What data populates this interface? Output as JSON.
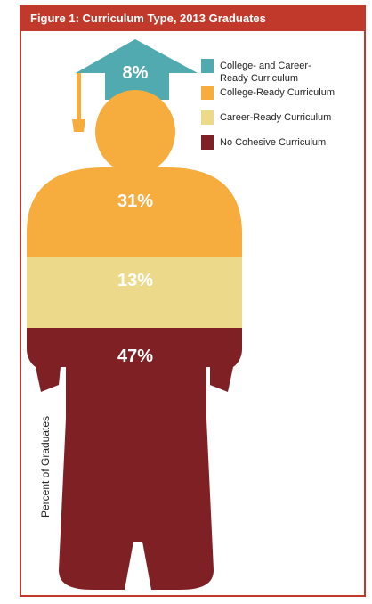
{
  "figure": {
    "title": "Figure 1: Curriculum Type, 2013 Graduates"
  },
  "colors": {
    "frame": "#c0392b",
    "header_bg": "#c0392b",
    "header_text": "#ffffff",
    "value_text": "#ffffff",
    "legend_text": "#222222"
  },
  "chart_data": {
    "type": "pictograph",
    "title": "Figure 1: Curriculum Type, 2013 Graduates",
    "ylabel": "Percent of Graduates",
    "unit": "%",
    "legend_position": "top-right",
    "categories": [
      "College- and Career-Ready Curriculum",
      "College-Ready Curriculum",
      "Career-Ready Curriculum",
      "No Cohesive Curriculum"
    ],
    "values": [
      8,
      31,
      13,
      47
    ],
    "labels": [
      "8%",
      "31%",
      "13%",
      "47%"
    ],
    "legend_lines": [
      [
        "College- and Career-",
        "Ready Curriculum"
      ],
      [
        "College-Ready Curriculum"
      ],
      [
        "Career-Ready Curriculum"
      ],
      [
        "No Cohesive Curriculum"
      ]
    ],
    "colors": [
      "#52aab1",
      "#f6ad3e",
      "#ecd98a",
      "#7f2024"
    ]
  }
}
